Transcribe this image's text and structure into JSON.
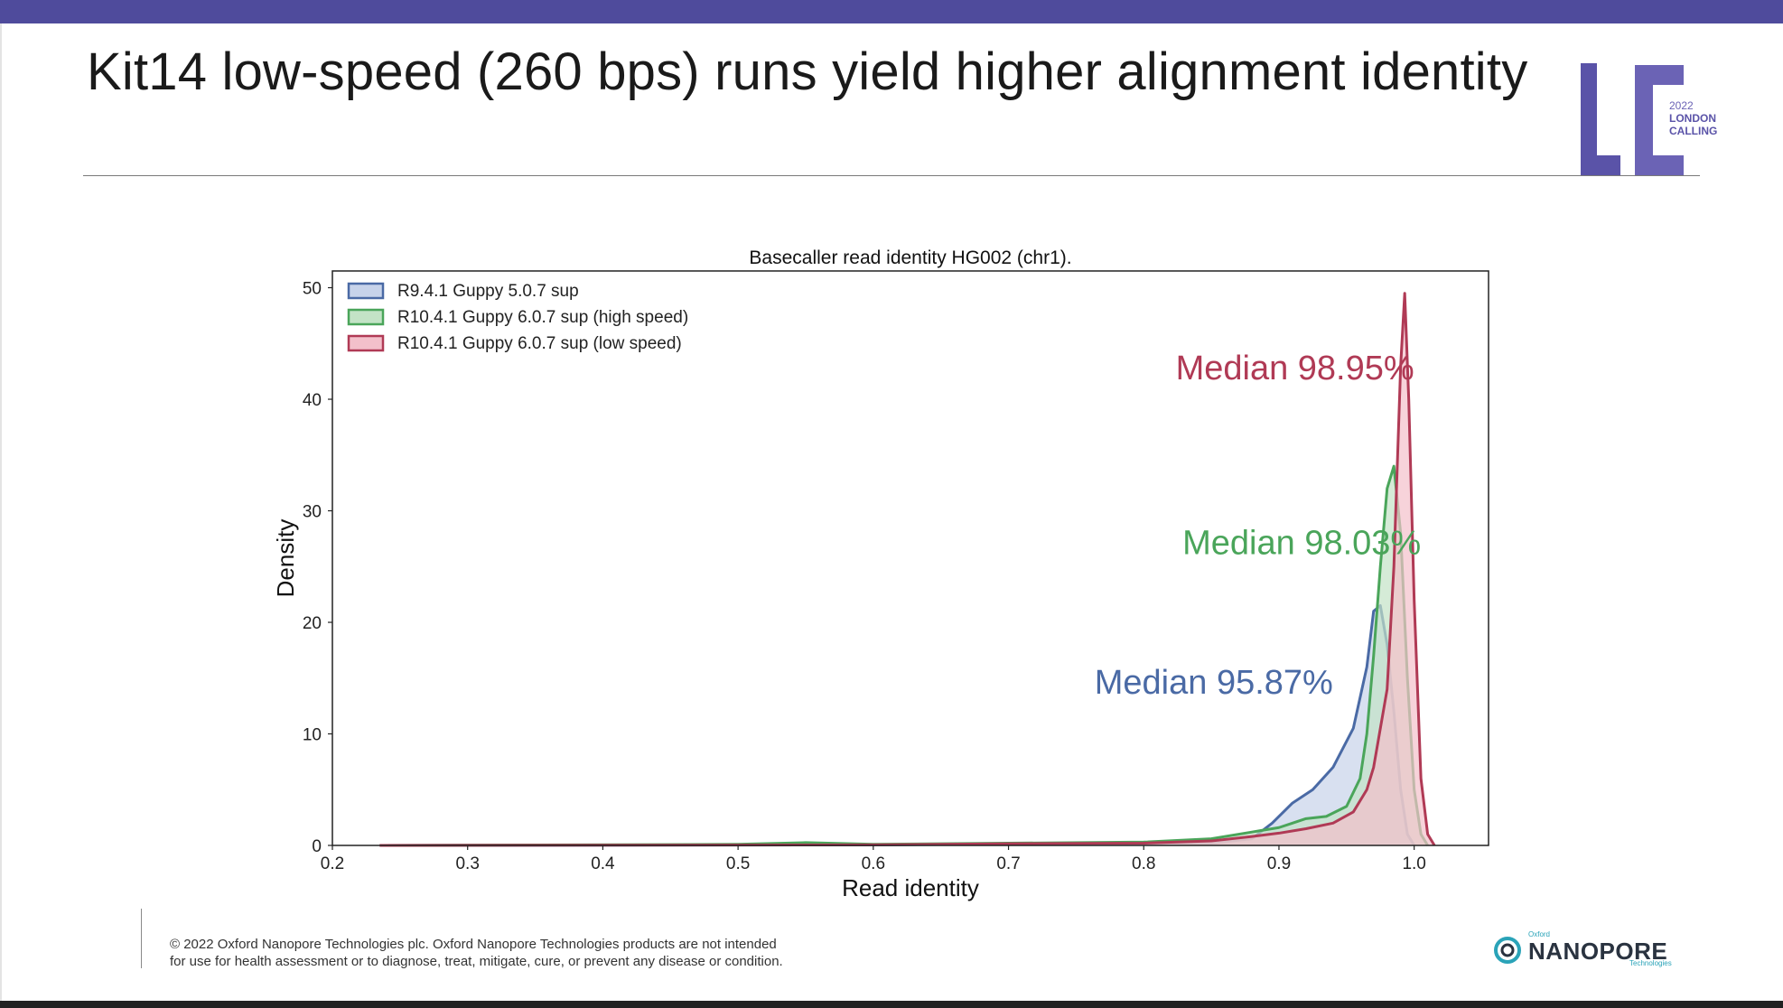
{
  "slide": {
    "title": "Kit14 low-speed (260 bps) runs yield higher alignment identity",
    "footer_line1": "© 2022 Oxford Nanopore Technologies plc. Oxford Nanopore Technologies products are not intended",
    "footer_line2": "for use for health assessment or to diagnose, treat, mitigate, cure, or prevent any disease or condition."
  },
  "branding": {
    "lc_letters": "LC",
    "lc_year": "2022",
    "lc_line1": "LONDON",
    "lc_line2": "CALLING",
    "np_oxford": "Oxford",
    "np_name": "NANOPORE",
    "np_tech": "Technologies",
    "lc_color": "#5a53a8",
    "np_color": "#2aa3b8"
  },
  "chart_data": {
    "type": "area",
    "title": "Basecaller read identity HG002 (chr1).",
    "xlabel": "Read identity",
    "ylabel": "Density",
    "xlim": [
      0.2,
      1.055
    ],
    "ylim": [
      0,
      51.5
    ],
    "xticks": [
      0.2,
      0.3,
      0.4,
      0.5,
      0.6,
      0.7,
      0.8,
      0.9,
      1.0
    ],
    "xtick_labels": [
      "0.2",
      "0.3",
      "0.4",
      "0.5",
      "0.6",
      "0.7",
      "0.8",
      "0.9",
      "1.0"
    ],
    "yticks": [
      0,
      10,
      20,
      30,
      40,
      50
    ],
    "ytick_labels": [
      "0",
      "10",
      "20",
      "30",
      "40",
      "50"
    ],
    "grid": false,
    "legend_position": "top-left",
    "series": [
      {
        "name": "R9.4.1 Guppy 5.0.7 sup",
        "color": "#4a6aa5",
        "fill": "#c7d3ea",
        "points": [
          [
            0.235,
            0
          ],
          [
            0.6,
            0.05
          ],
          [
            0.85,
            0.2
          ],
          [
            0.88,
            0.6
          ],
          [
            0.895,
            2
          ],
          [
            0.91,
            3.8
          ],
          [
            0.925,
            5
          ],
          [
            0.94,
            7
          ],
          [
            0.955,
            10.5
          ],
          [
            0.965,
            16
          ],
          [
            0.97,
            21
          ],
          [
            0.975,
            21.5
          ],
          [
            0.98,
            18
          ],
          [
            0.985,
            12
          ],
          [
            0.99,
            5
          ],
          [
            0.995,
            1
          ],
          [
            1.0,
            0
          ]
        ]
      },
      {
        "name": "R10.4.1 Guppy 6.0.7 sup (high speed)",
        "color": "#4aa55a",
        "fill": "#c3e3c6",
        "points": [
          [
            0.235,
            0
          ],
          [
            0.5,
            0.1
          ],
          [
            0.55,
            0.25
          ],
          [
            0.6,
            0.1
          ],
          [
            0.7,
            0.2
          ],
          [
            0.8,
            0.3
          ],
          [
            0.85,
            0.6
          ],
          [
            0.88,
            1.2
          ],
          [
            0.9,
            1.6
          ],
          [
            0.91,
            2
          ],
          [
            0.92,
            2.4
          ],
          [
            0.935,
            2.6
          ],
          [
            0.95,
            3.5
          ],
          [
            0.96,
            6
          ],
          [
            0.965,
            10
          ],
          [
            0.97,
            17
          ],
          [
            0.975,
            25
          ],
          [
            0.98,
            32
          ],
          [
            0.985,
            34
          ],
          [
            0.99,
            28
          ],
          [
            0.995,
            15
          ],
          [
            1.0,
            5
          ],
          [
            1.005,
            1
          ],
          [
            1.01,
            0
          ]
        ]
      },
      {
        "name": "R10.4.1 Guppy 6.0.7 sup (low speed)",
        "color": "#b03a55",
        "fill": "#f3c0cb",
        "points": [
          [
            0.235,
            0
          ],
          [
            0.6,
            0.05
          ],
          [
            0.7,
            0.15
          ],
          [
            0.8,
            0.2
          ],
          [
            0.85,
            0.4
          ],
          [
            0.88,
            0.8
          ],
          [
            0.9,
            1.1
          ],
          [
            0.92,
            1.5
          ],
          [
            0.94,
            2
          ],
          [
            0.955,
            3
          ],
          [
            0.965,
            5
          ],
          [
            0.97,
            7
          ],
          [
            0.98,
            14
          ],
          [
            0.985,
            25
          ],
          [
            0.99,
            43
          ],
          [
            0.993,
            49.5
          ],
          [
            0.996,
            40
          ],
          [
            1.0,
            22
          ],
          [
            1.005,
            6
          ],
          [
            1.01,
            1
          ],
          [
            1.015,
            0
          ]
        ]
      }
    ],
    "annotations": [
      {
        "text": "Median 98.95%",
        "color": "#b03a55"
      },
      {
        "text": "Median 98.03%",
        "color": "#4aa55a"
      },
      {
        "text": "Median 95.87%",
        "color": "#4a6aa5"
      }
    ]
  }
}
